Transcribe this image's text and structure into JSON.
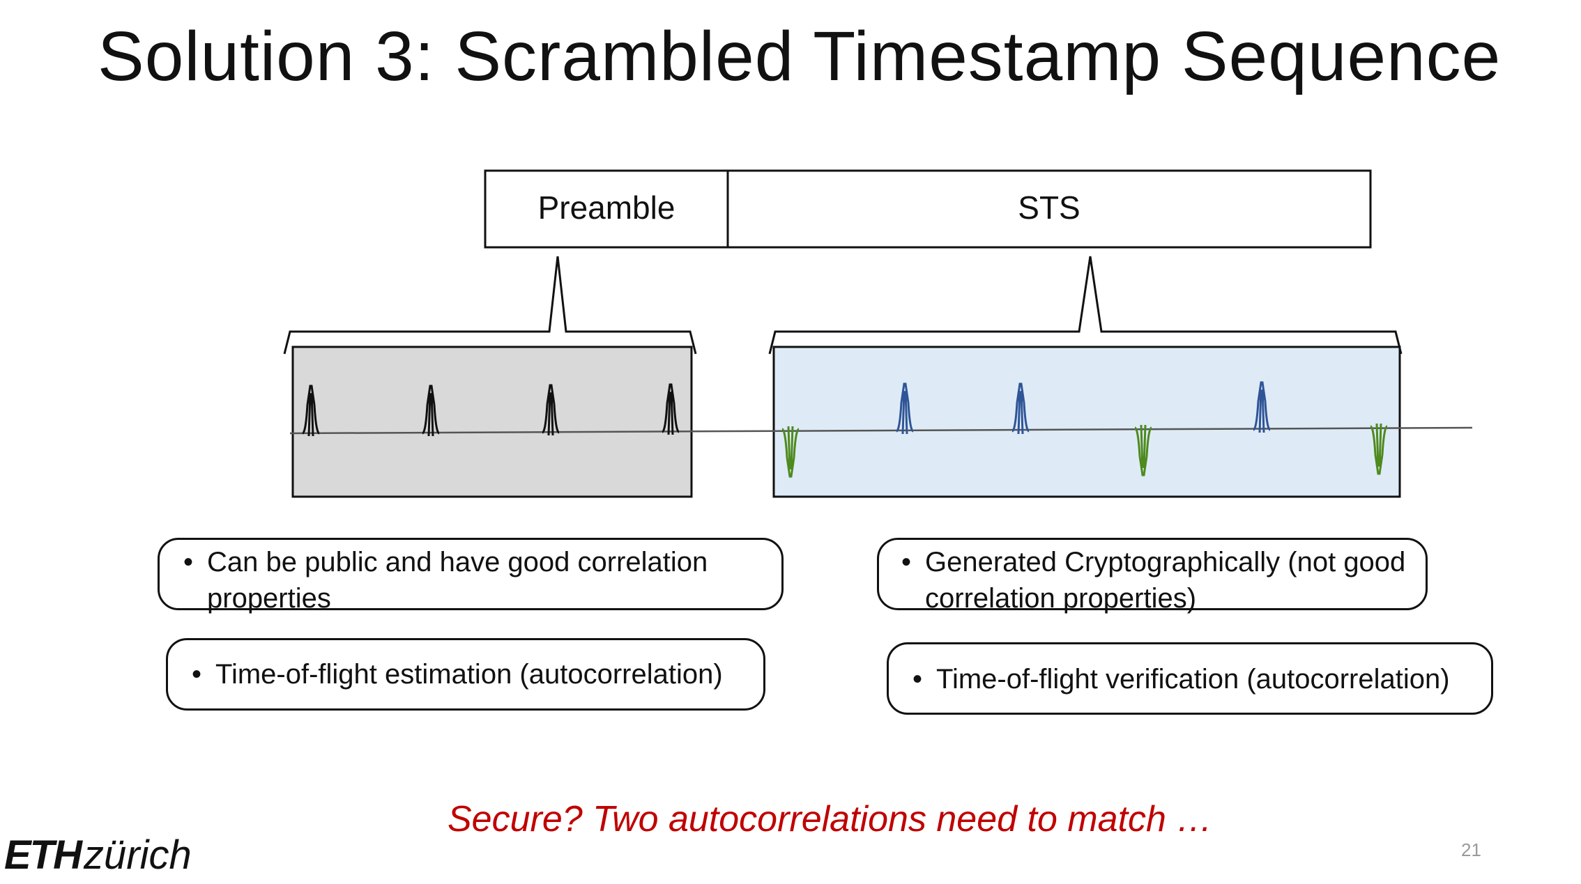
{
  "slide": {
    "title": "Solution 3: Scrambled Timestamp Sequence",
    "page_number": "21"
  },
  "frame": {
    "preamble_label": "Preamble",
    "sts_label": "STS"
  },
  "notes": {
    "preamble_properties": "Can be public and have good correlation properties",
    "preamble_use": "Time-of-flight estimation (autocorrelation)",
    "sts_properties": "Generated Cryptographically (not good correlation properties)",
    "sts_use": "Time-of-flight verification (autocorrelation)"
  },
  "footer": {
    "question": "Secure? Two autocorrelations need to match …",
    "logo_eth": "ETH",
    "logo_zurich": "zürich"
  },
  "colors": {
    "preamble_fill": "#d9d9d9",
    "sts_fill": "#deebf7",
    "pulse_black": "#111111",
    "pulse_blue": "#2f5597",
    "pulse_green": "#4e8a1e",
    "accent_red": "#c00000"
  }
}
